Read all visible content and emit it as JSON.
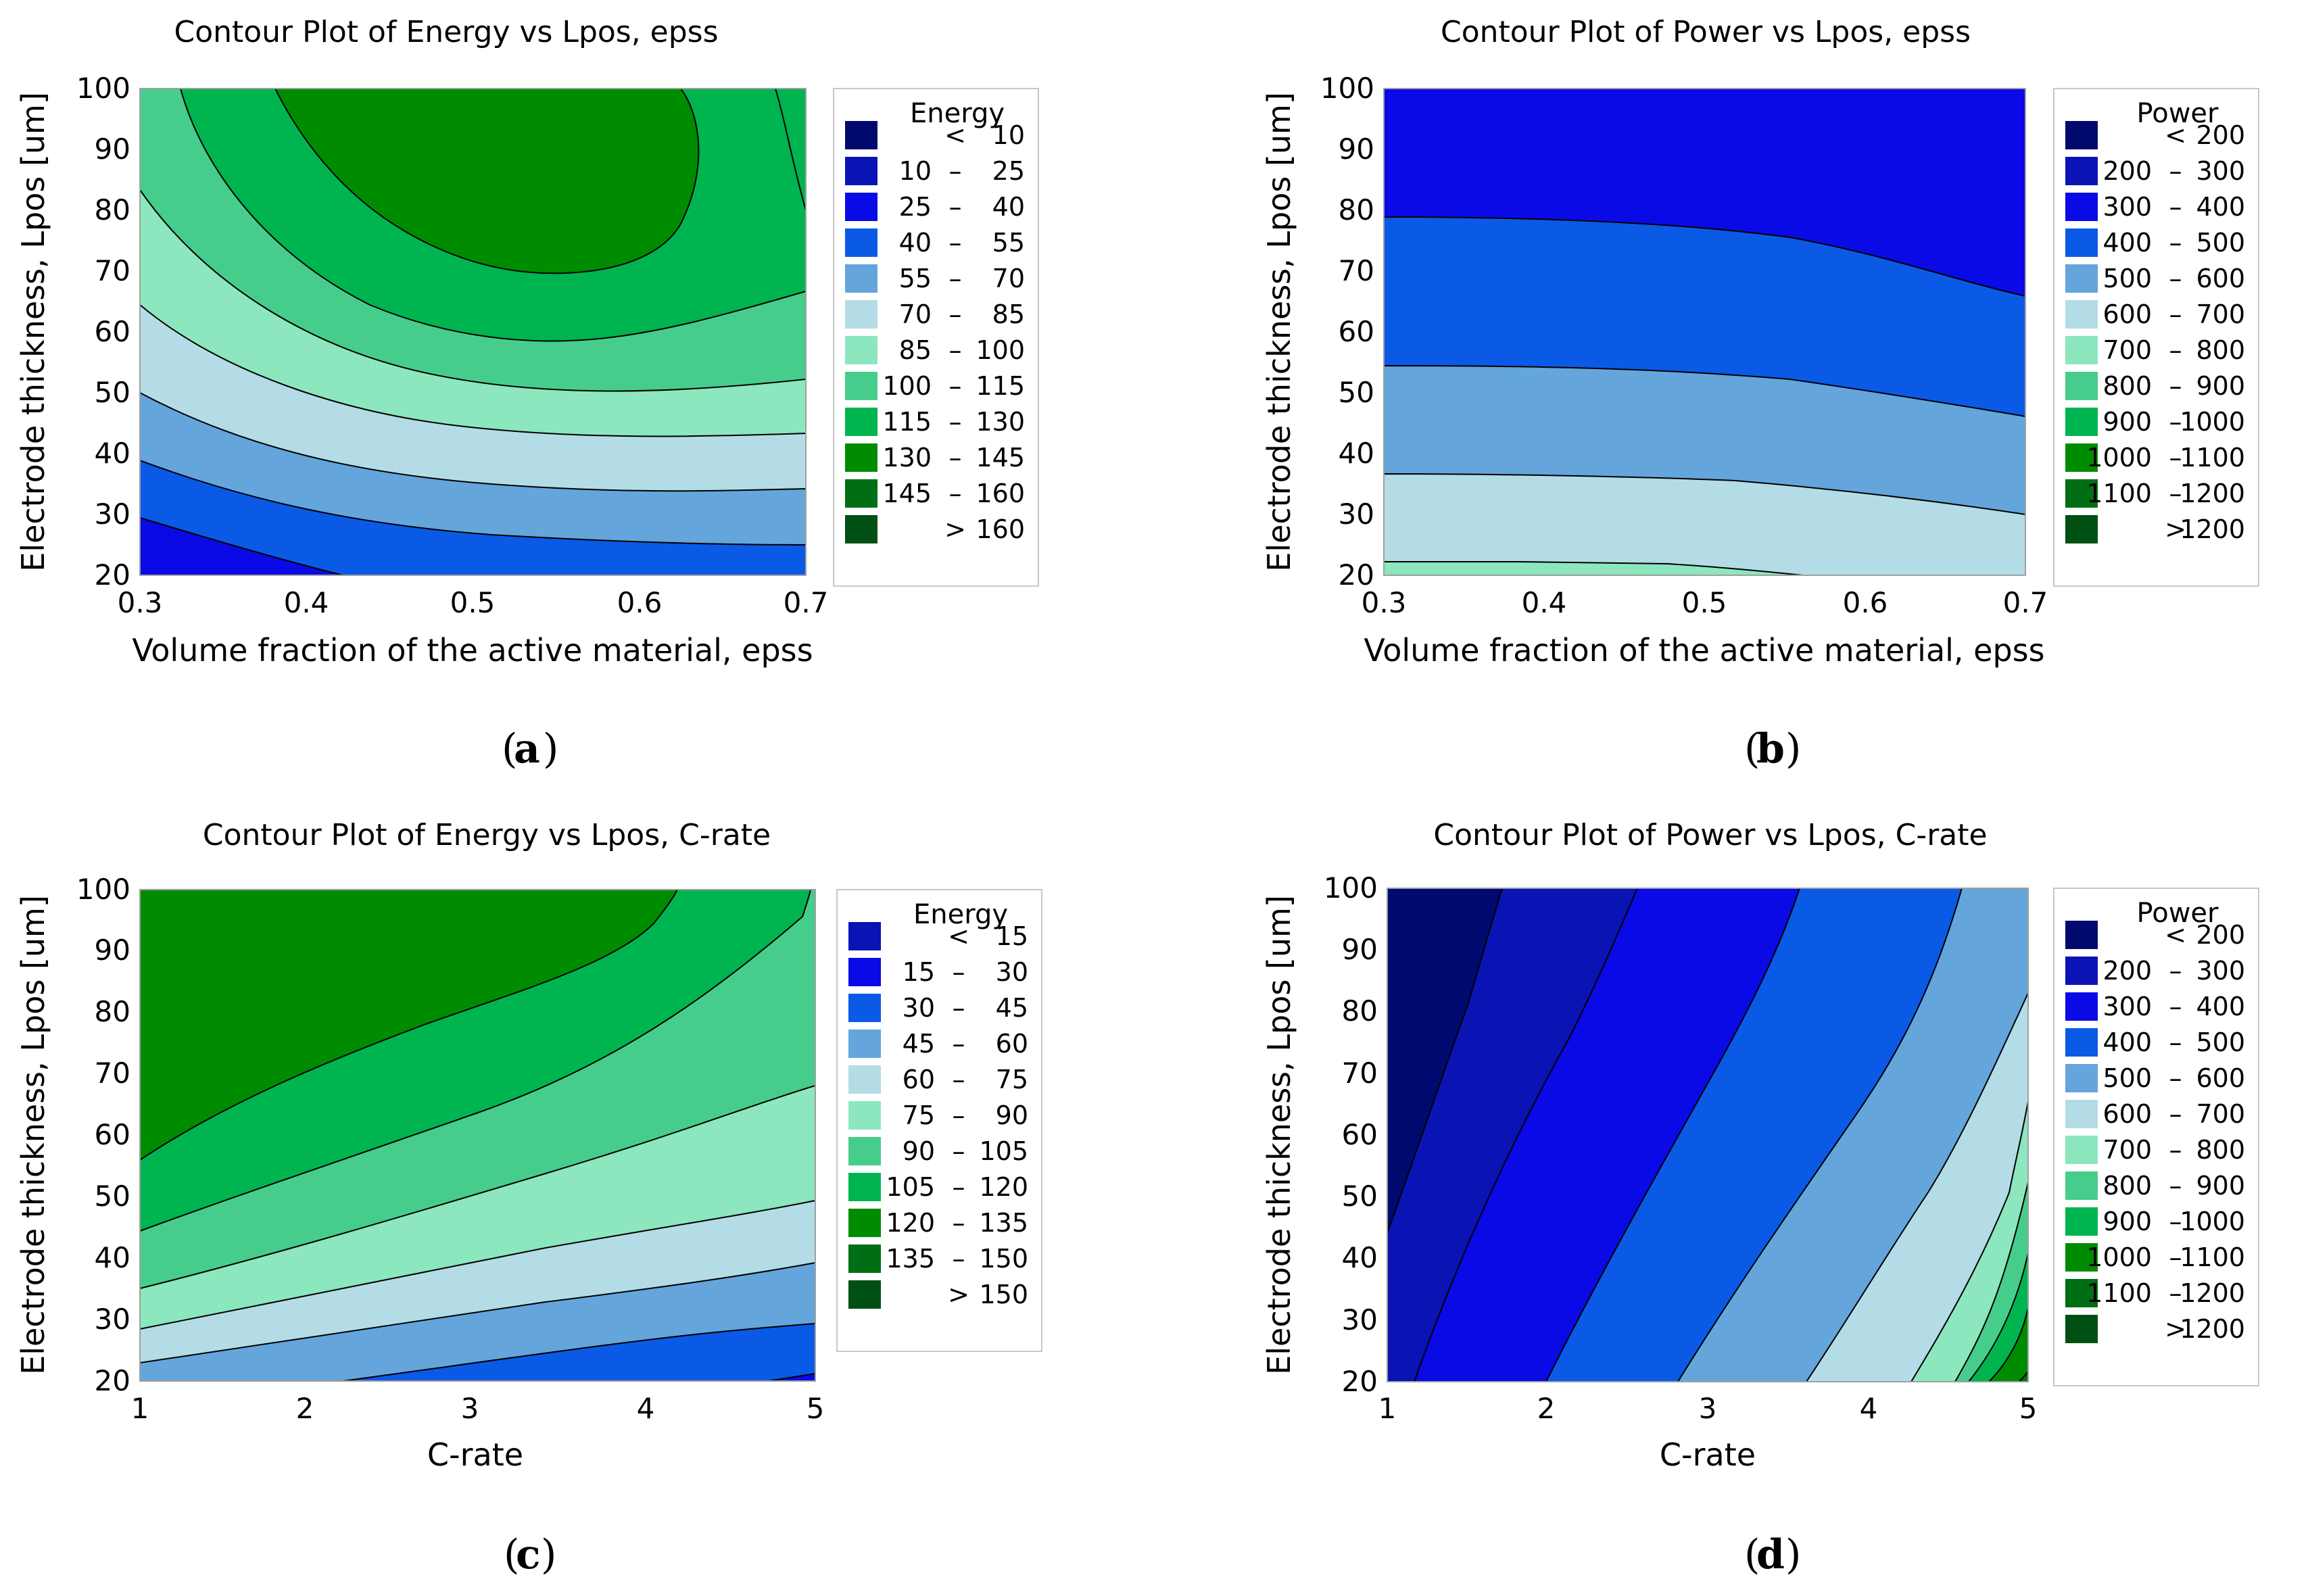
{
  "chart_data": [
    {
      "type": "contour",
      "caption": "a",
      "title": "Contour Plot of Energy vs Lpos, epss",
      "xlabel": "Volume fraction of the active material, epss",
      "ylabel": "Electrode thickness, Lpos [um]",
      "xlim": [
        0.3,
        0.7
      ],
      "ylim": [
        20,
        100
      ],
      "xticks": [
        "0.3",
        "0.4",
        "0.5",
        "0.6",
        "0.7"
      ],
      "yticks": [
        "20",
        "30",
        "40",
        "50",
        "60",
        "70",
        "80",
        "90",
        "100"
      ],
      "legend": {
        "title": "Energy",
        "entries": [
          {
            "op": "<",
            "lo": "",
            "hi": "10",
            "color": "#000A6E"
          },
          {
            "op": "–",
            "lo": "10",
            "hi": "25",
            "color": "#0A14B4"
          },
          {
            "op": "–",
            "lo": "25",
            "hi": "40",
            "color": "#0A0AE6"
          },
          {
            "op": "–",
            "lo": "40",
            "hi": "55",
            "color": "#0A5AE6"
          },
          {
            "op": "–",
            "lo": "55",
            "hi": "70",
            "color": "#64A5DC"
          },
          {
            "op": "–",
            "lo": "70",
            "hi": "85",
            "color": "#B4DCE6"
          },
          {
            "op": "–",
            "lo": "85",
            "hi": "100",
            "color": "#8CE6BE"
          },
          {
            "op": "–",
            "lo": "100",
            "hi": "115",
            "color": "#46CD8C"
          },
          {
            "op": "–",
            "lo": "115",
            "hi": "130",
            "color": "#00B450"
          },
          {
            "op": "–",
            "lo": "130",
            "hi": "145",
            "color": "#008C00"
          },
          {
            "op": "–",
            "lo": "145",
            "hi": "160",
            "color": "#006E14"
          },
          {
            "op": ">",
            "lo": "",
            "hi": "160",
            "color": "#005014"
          }
        ]
      }
    },
    {
      "type": "contour",
      "caption": "b",
      "title": "Contour Plot of Power vs Lpos, epss",
      "xlabel": "Volume fraction of the active material, epss",
      "ylabel": "Electrode thickness, Lpos [um]",
      "xlim": [
        0.3,
        0.7
      ],
      "ylim": [
        20,
        100
      ],
      "xticks": [
        "0.3",
        "0.4",
        "0.5",
        "0.6",
        "0.7"
      ],
      "yticks": [
        "20",
        "30",
        "40",
        "50",
        "60",
        "70",
        "80",
        "90",
        "100"
      ],
      "legend": {
        "title": "Power",
        "entries": [
          {
            "op": "<",
            "lo": "",
            "hi": "200",
            "color": "#000A6E"
          },
          {
            "op": "–",
            "lo": "200",
            "hi": "300",
            "color": "#0A14B4"
          },
          {
            "op": "–",
            "lo": "300",
            "hi": "400",
            "color": "#0A0AE6"
          },
          {
            "op": "–",
            "lo": "400",
            "hi": "500",
            "color": "#0A5AE6"
          },
          {
            "op": "–",
            "lo": "500",
            "hi": "600",
            "color": "#64A5DC"
          },
          {
            "op": "–",
            "lo": "600",
            "hi": "700",
            "color": "#B4DCE6"
          },
          {
            "op": "–",
            "lo": "700",
            "hi": "800",
            "color": "#8CE6BE"
          },
          {
            "op": "–",
            "lo": "800",
            "hi": "900",
            "color": "#46CD8C"
          },
          {
            "op": "–",
            "lo": "900",
            "hi": "1000",
            "color": "#00B450"
          },
          {
            "op": "–",
            "lo": "1000",
            "hi": "1100",
            "color": "#008C00"
          },
          {
            "op": "–",
            "lo": "1100",
            "hi": "1200",
            "color": "#006E14"
          },
          {
            "op": ">",
            "lo": "",
            "hi": "1200",
            "color": "#005014"
          }
        ]
      }
    },
    {
      "type": "contour",
      "caption": "c",
      "title": "Contour Plot of Energy vs Lpos, C-rate",
      "xlabel": "C-rate",
      "ylabel": "Electrode thickness, Lpos [um]",
      "xlim": [
        1,
        5
      ],
      "ylim": [
        20,
        100
      ],
      "xticks": [
        "1",
        "2",
        "3",
        "4",
        "5"
      ],
      "yticks": [
        "20",
        "30",
        "40",
        "50",
        "60",
        "70",
        "80",
        "90",
        "100"
      ],
      "legend": {
        "title": "Energy",
        "entries": [
          {
            "op": "<",
            "lo": "",
            "hi": "15",
            "color": "#0A14B4"
          },
          {
            "op": "–",
            "lo": "15",
            "hi": "30",
            "color": "#0A0AE6"
          },
          {
            "op": "–",
            "lo": "30",
            "hi": "45",
            "color": "#0A5AE6"
          },
          {
            "op": "–",
            "lo": "45",
            "hi": "60",
            "color": "#64A5DC"
          },
          {
            "op": "–",
            "lo": "60",
            "hi": "75",
            "color": "#B4DCE6"
          },
          {
            "op": "–",
            "lo": "75",
            "hi": "90",
            "color": "#8CE6BE"
          },
          {
            "op": "–",
            "lo": "90",
            "hi": "105",
            "color": "#46CD8C"
          },
          {
            "op": "–",
            "lo": "105",
            "hi": "120",
            "color": "#00B450"
          },
          {
            "op": "–",
            "lo": "120",
            "hi": "135",
            "color": "#008C00"
          },
          {
            "op": "–",
            "lo": "135",
            "hi": "150",
            "color": "#006E14"
          },
          {
            "op": ">",
            "lo": "",
            "hi": "150",
            "color": "#005014"
          }
        ]
      }
    },
    {
      "type": "contour",
      "caption": "d",
      "title": "Contour Plot of Power vs Lpos, C-rate",
      "xlabel": "C-rate",
      "ylabel": "Electrode thickness, Lpos [um]",
      "xlim": [
        1,
        5
      ],
      "ylim": [
        20,
        100
      ],
      "xticks": [
        "1",
        "2",
        "3",
        "4",
        "5"
      ],
      "yticks": [
        "20",
        "30",
        "40",
        "50",
        "60",
        "70",
        "80",
        "90",
        "100"
      ],
      "legend": {
        "title": "Power",
        "entries": [
          {
            "op": "<",
            "lo": "",
            "hi": "200",
            "color": "#000A6E"
          },
          {
            "op": "–",
            "lo": "200",
            "hi": "300",
            "color": "#0A14B4"
          },
          {
            "op": "–",
            "lo": "300",
            "hi": "400",
            "color": "#0A0AE6"
          },
          {
            "op": "–",
            "lo": "400",
            "hi": "500",
            "color": "#0A5AE6"
          },
          {
            "op": "–",
            "lo": "500",
            "hi": "600",
            "color": "#64A5DC"
          },
          {
            "op": "–",
            "lo": "600",
            "hi": "700",
            "color": "#B4DCE6"
          },
          {
            "op": "–",
            "lo": "700",
            "hi": "800",
            "color": "#8CE6BE"
          },
          {
            "op": "–",
            "lo": "800",
            "hi": "900",
            "color": "#46CD8C"
          },
          {
            "op": "–",
            "lo": "900",
            "hi": "1000",
            "color": "#00B450"
          },
          {
            "op": "–",
            "lo": "1000",
            "hi": "1100",
            "color": "#008C00"
          },
          {
            "op": "–",
            "lo": "1100",
            "hi": "1200",
            "color": "#006E14"
          },
          {
            "op": ">",
            "lo": "",
            "hi": "1200",
            "color": "#005014"
          }
        ]
      }
    }
  ]
}
